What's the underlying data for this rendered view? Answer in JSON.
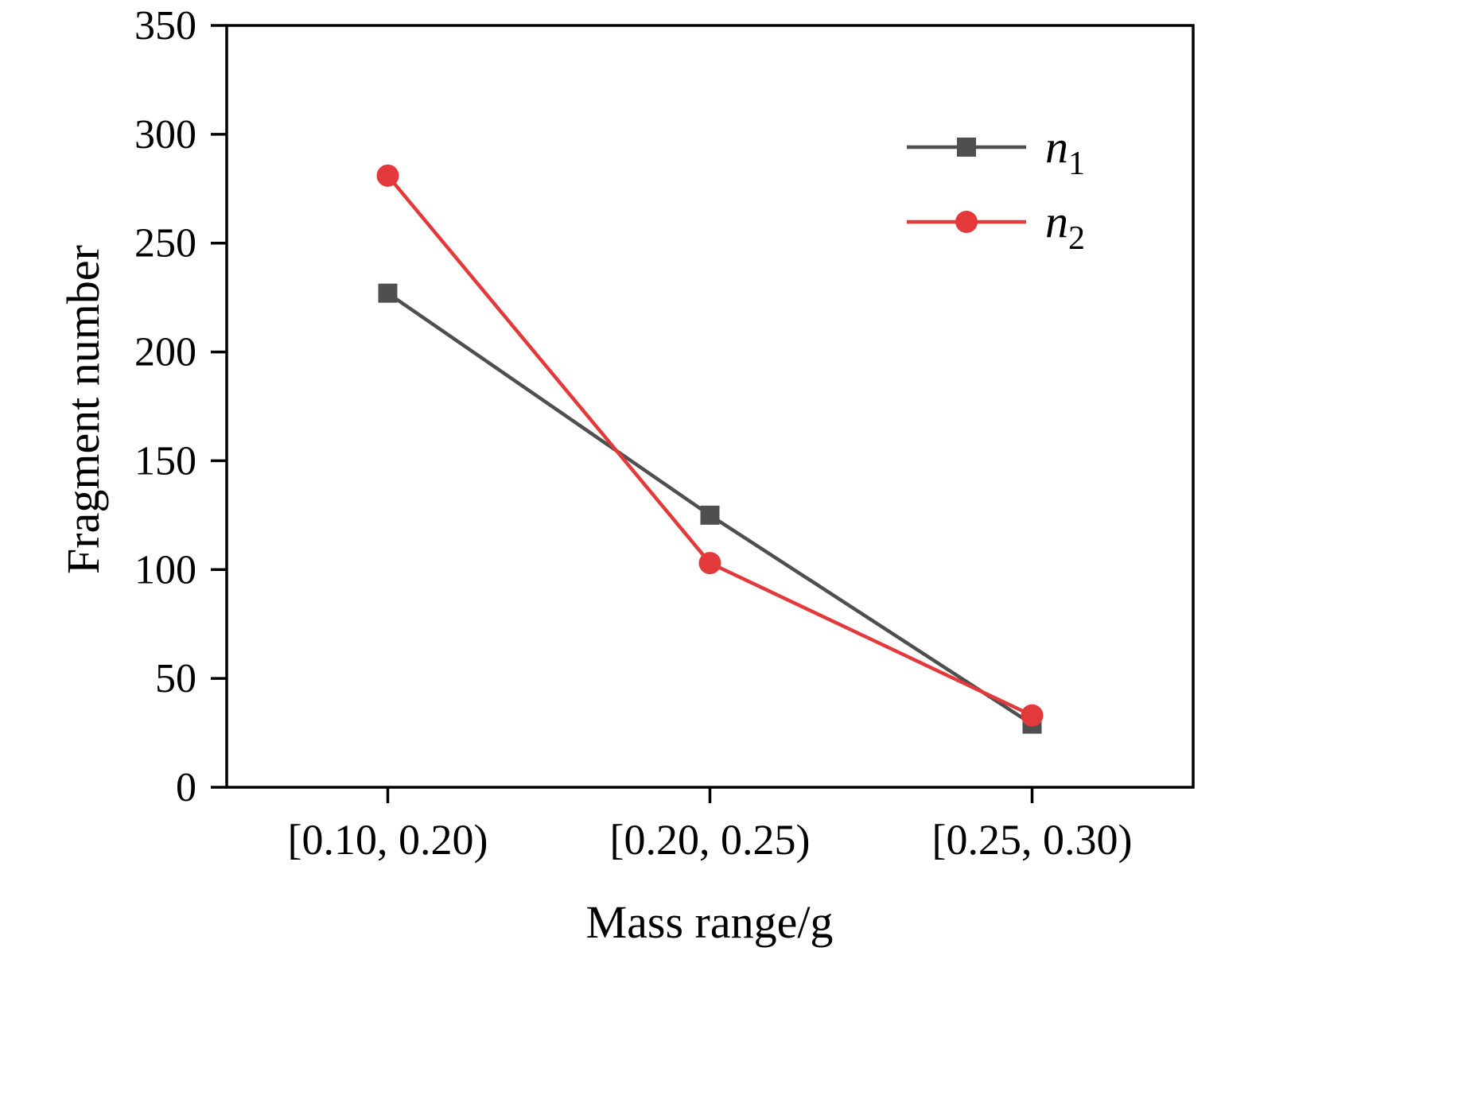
{
  "chart_data": {
    "type": "line",
    "title": "",
    "xlabel": "Mass range/g",
    "ylabel": "Fragment number",
    "categories": [
      "[0.10, 0.20)",
      "[0.20, 0.25)",
      "[0.25, 0.30)"
    ],
    "series": [
      {
        "name": "n1",
        "label_base": "n",
        "label_sub": "1",
        "marker": "square",
        "color": "#4f4f4f",
        "values": [
          227,
          125,
          29
        ]
      },
      {
        "name": "n2",
        "label_base": "n",
        "label_sub": "2",
        "marker": "circle",
        "color": "#e4393b",
        "values": [
          281,
          103,
          33
        ]
      }
    ],
    "ylim": [
      0,
      350
    ],
    "ytick_step": 50,
    "yticks": [
      0,
      50,
      100,
      150,
      200,
      250,
      300,
      350
    ],
    "grid": false,
    "legend_position": "top-right",
    "frame_color": "#000000"
  }
}
